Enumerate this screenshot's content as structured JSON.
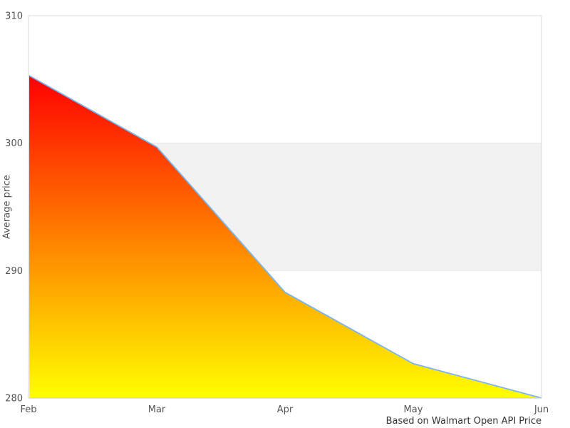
{
  "chart_data": {
    "type": "area",
    "categories": [
      "Feb",
      "Mar",
      "Apr",
      "May",
      "Jun"
    ],
    "values": [
      305.3,
      299.7,
      288.3,
      282.7,
      280
    ],
    "title": "",
    "xlabel": "",
    "ylabel": "Average price",
    "ylim": [
      280,
      310
    ],
    "yticks": [
      280,
      290,
      300,
      310
    ],
    "ytick_step": 10,
    "caption": "Based on Walmart Open API Price",
    "legend": "none",
    "grid": "horizontal",
    "plot_band": {
      "from": 290,
      "to": 300,
      "color": "#f2f2f2",
      "edge_color": "#e8e8e8"
    },
    "colors": {
      "line": "#7cb5ec",
      "gradient_top": "#ff0000",
      "gradient_bottom": "#ffff00",
      "plot_border": "#d9d9d9",
      "x_axis_line": "#c8c8c8",
      "tick_text": "#555555",
      "caption_text": "#333333",
      "background": "#ffffff"
    }
  }
}
